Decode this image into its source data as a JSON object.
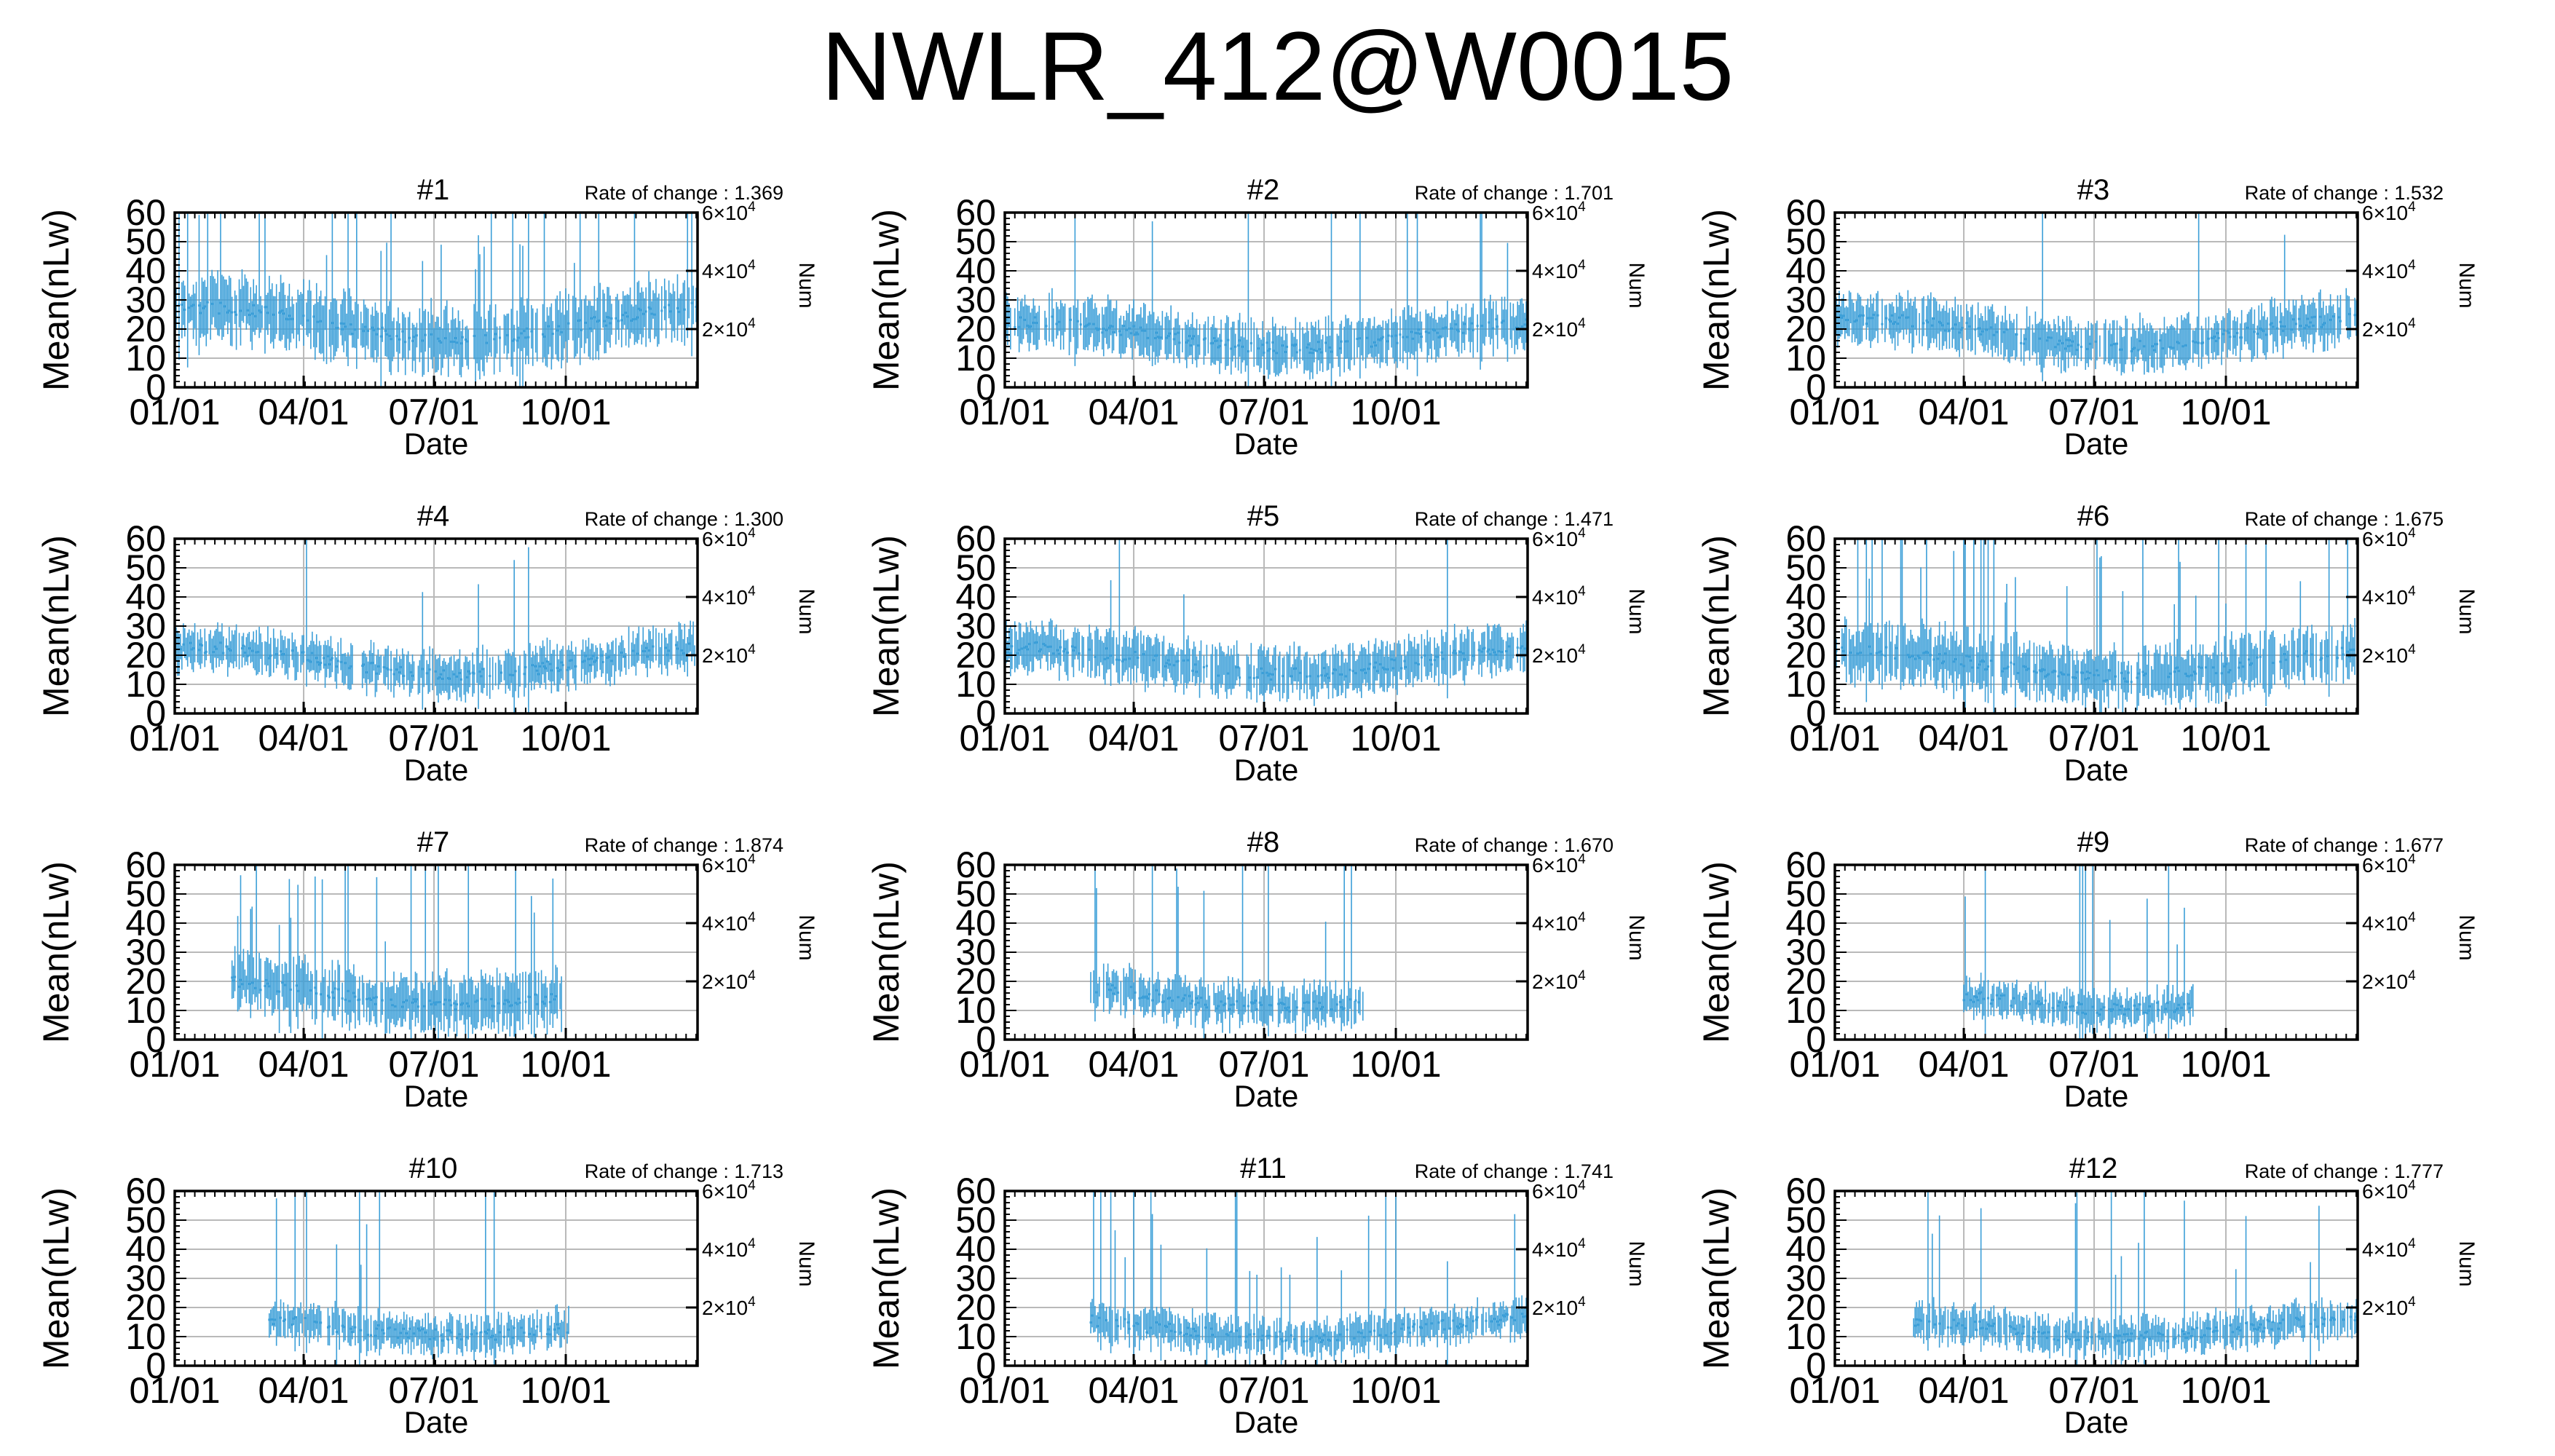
{
  "title": "NWLR_412@W0015",
  "axes": {
    "xlabel": "Date",
    "ylabel": "Mean(nLw)",
    "y2label": "Num",
    "ylim": [
      0,
      60
    ],
    "yticks": [
      "0",
      "10",
      "20",
      "30",
      "40",
      "50",
      "60"
    ],
    "xlim": [
      "01/01",
      "12/31"
    ],
    "xticks": [
      {
        "label": "01/01",
        "day": 0
      },
      {
        "label": "04/01",
        "day": 90
      },
      {
        "label": "07/01",
        "day": 181
      },
      {
        "label": "10/01",
        "day": 273
      }
    ],
    "y2ticks": [
      {
        "base": "2×10",
        "exp": "4",
        "y": 20
      },
      {
        "base": "4×10",
        "exp": "4",
        "y": 40
      },
      {
        "base": "6×10",
        "exp": "4",
        "y": 60
      }
    ],
    "rate_prefix": "Rate of change : ",
    "series_color": "#3c9fd8",
    "grid_color": "#b9b9b9"
  },
  "chart_data": [
    {
      "type": "bar",
      "title": "#1",
      "rate": "1.369",
      "valid": [
        0,
        365
      ],
      "level": 22,
      "spread": 9,
      "spikes": 0.08
    },
    {
      "type": "bar",
      "title": "#2",
      "rate": "1.701",
      "valid": [
        0,
        365
      ],
      "level": 18,
      "spread": 7,
      "spikes": 0.03
    },
    {
      "type": "bar",
      "title": "#3",
      "rate": "1.532",
      "valid": [
        0,
        365
      ],
      "level": 19,
      "spread": 7,
      "spikes": 0.03
    },
    {
      "type": "bar",
      "title": "#4",
      "rate": "1.300",
      "valid": [
        0,
        365
      ],
      "level": 18,
      "spread": 6,
      "spikes": 0.02
    },
    {
      "type": "bar",
      "title": "#5",
      "rate": "1.471",
      "valid": [
        0,
        365
      ],
      "level": 18,
      "spread": 7,
      "spikes": 0.03
    },
    {
      "type": "bar",
      "title": "#6",
      "rate": "1.675",
      "valid": [
        0,
        365
      ],
      "level": 17,
      "spread": 8,
      "spikes": 0.12
    },
    {
      "type": "bar",
      "title": "#7",
      "rate": "1.874",
      "valid": [
        40,
        270
      ],
      "level": 16,
      "spread": 8,
      "spikes": 0.1
    },
    {
      "type": "bar",
      "title": "#8",
      "rate": "1.670",
      "valid": [
        60,
        250
      ],
      "level": 15,
      "spread": 6,
      "spikes": 0.06
    },
    {
      "type": "bar",
      "title": "#9",
      "rate": "1.677",
      "valid": [
        90,
        250
      ],
      "level": 14,
      "spread": 5,
      "spikes": 0.05
    },
    {
      "type": "bar",
      "title": "#10",
      "rate": "1.713",
      "valid": [
        65,
        275
      ],
      "level": 14,
      "spread": 5,
      "spikes": 0.06
    },
    {
      "type": "bar",
      "title": "#11",
      "rate": "1.741",
      "valid": [
        60,
        365
      ],
      "level": 13,
      "spread": 5,
      "spikes": 0.07
    },
    {
      "type": "bar",
      "title": "#12",
      "rate": "1.777",
      "valid": [
        55,
        365
      ],
      "level": 13,
      "spread": 5,
      "spikes": 0.07
    }
  ]
}
